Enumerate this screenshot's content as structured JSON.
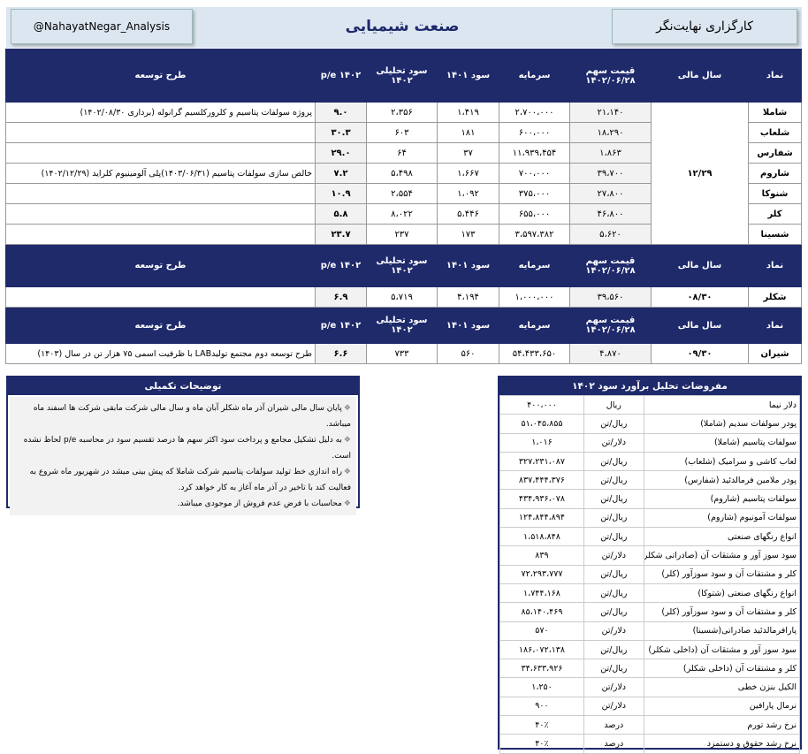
{
  "header": {
    "handle": "@NahayatNegar_Analysis",
    "title": "صنعت شیمیایی",
    "broker": "کارگزاری نهایت‌نگر"
  },
  "sections": [
    {
      "columns": [
        "نماد",
        "سال مالی",
        "قیمت سهم\n۱۴۰۲/۰۶/۲۸",
        "سرمایه",
        "سود ۱۴۰۱",
        "سود تحلیلی\n۱۴۰۲",
        "p/e ۱۴۰۲",
        "طرح توسعه"
      ],
      "fiscal_year": "۱۲/۲۹",
      "rows": [
        [
          "شاملا",
          "۲۱،۱۴۰",
          "۲،۷۰۰،۰۰۰",
          "۱،۴۱۹",
          "۲،۳۵۶",
          "۹.۰",
          "پروژه سولفات پتاسیم و کلرورکلسیم گرانوله (برداری ۱۴۰۲/۰۸/۳۰)"
        ],
        [
          "شلعاب",
          "۱۸،۲۹۰",
          "۶۰۰،۰۰۰",
          "۱۸۱",
          "۶۰۳",
          "۳۰.۳",
          ""
        ],
        [
          "شفارس",
          "۱،۸۶۳",
          "۱۱،۹۳۹،۴۵۴",
          "۳۷",
          "۶۴",
          "۲۹.۰",
          ""
        ],
        [
          "شاروم",
          "۳۹،۷۰۰",
          "۷۰۰،۰۰۰",
          "۱،۶۶۷",
          "۵،۴۹۸",
          "۷.۲",
          "خالص سازی سولفات پتاسیم (۱۴۰۳/۰۶/۳۱)پلی آلومینیوم کلراید (۱۴۰۲/۱۲/۲۹)"
        ],
        [
          "شنوکا",
          "۲۷،۸۰۰",
          "۳۷۵،۰۰۰",
          "۱،۰۹۲",
          "۲،۵۵۴",
          "۱۰.۹",
          ""
        ],
        [
          "کلر",
          "۴۶،۸۰۰",
          "۶۵۵،۰۰۰",
          "۵،۴۴۶",
          "۸،۰۲۲",
          "۵.۸",
          ""
        ],
        [
          "شسینا",
          "۵،۶۲۰",
          "۳،۵۹۷،۳۸۲",
          "۱۷۳",
          "۲۳۷",
          "۲۳.۷",
          ""
        ]
      ]
    },
    {
      "columns": [
        "نماد",
        "سال مالی",
        "قیمت سهم\n۱۴۰۲/۰۶/۲۸",
        "سرمایه",
        "سود ۱۴۰۱",
        "سود تحلیلی\n۱۴۰۲",
        "p/e ۱۴۰۲",
        "طرح توسعه"
      ],
      "fiscal_year": "۰۸/۳۰",
      "rows": [
        [
          "شکلر",
          "۳۹،۵۶۰",
          "۱،۰۰۰،۰۰۰",
          "۴،۱۹۴",
          "۵،۷۱۹",
          "۶.۹",
          ""
        ]
      ]
    },
    {
      "columns": [
        "نماد",
        "سال مالی",
        "قیمت سهم\n۱۴۰۲/۰۶/۲۸",
        "سرمایه",
        "سود ۱۴۰۱",
        "سود تحلیلی\n۱۴۰۲",
        "p/e ۱۴۰۲",
        "طرح توسعه"
      ],
      "fiscal_year": "۰۹/۳۰",
      "rows": [
        [
          "شیران",
          "۴،۸۷۰",
          "۵۴،۴۳۳،۶۵۰",
          "۵۶۰",
          "۷۳۳",
          "۶.۶",
          "طرح توسعه دوم مجتمع تولیدLAB با ظرفیت اسمی ۷۵ هزار تن در سال (۱۴۰۳)"
        ]
      ]
    }
  ],
  "notes": {
    "title": "توضیحات تکمیلی",
    "items": [
      "پایان سال مالی شیران آذر ماه شکلر آبان ماه و سال مالی شرکت مابقی شرکت ها اسفند ماه میباشد.",
      "به دلیل تشکیل مجامع و پرداخت سود اکثر سهم ها درصد تقسیم سود در محاسبه p/e لحاظ نشده است.",
      "راه اندازی خط تولید سولفات پتاسیم شرکت شاملا که پیش بینی میشد در شهریور ماه شروع به فعالیت کند با تاخیر در آذر ماه آغاز به کار خواهد کرد.",
      "محاسبات با فرض عدم فروش از موجودی میباشد."
    ]
  },
  "assumptions": {
    "title": "مفروضات تحلیل برآورد سود ۱۴۰۲",
    "rows": [
      [
        "دلار نیما",
        "ریال",
        "۴۰۰،۰۰۰"
      ],
      [
        "پودر سولفات سدیم (شاملا)",
        "ریال/تن",
        "۵۱،۰۴۵،۸۵۵"
      ],
      [
        "سولفات پتاسیم (شاملا)",
        "دلار/تن",
        "۱،۰۱۶"
      ],
      [
        "لعاب کاشی و سرامیک (شلعاب)",
        "ریال/تن",
        "۳۲۷،۲۳۱،۰۸۷"
      ],
      [
        "پودر ملامین فرمالدئید (شفارس)",
        "ریال/تن",
        "۸۳۷،۴۴۴،۳۷۶"
      ],
      [
        "سولفات پتاسیم (شاروم)",
        "ریال/تن",
        "۴۳۴،۹۳۶،۰۷۸"
      ],
      [
        "سولفات آمونیوم (شاروم)",
        "ریال/تن",
        "۱۲۴،۸۴۴،۸۹۴"
      ],
      [
        "انواع رنگهای صنعتی",
        "ریال/تن",
        "۱،۵۱۸،۸۴۸"
      ],
      [
        "سود سوز آور و مشتقات آن (صادراتی شکلر)",
        "دلار/تن",
        "۸۳۹"
      ],
      [
        "کلر و مشتقات آن و سود سوزآور (کلر)",
        "ریال/تن",
        "۷۲،۲۹۳،۷۷۷"
      ],
      [
        "انواع رنگهای صنعتی (شتوکا)",
        "ریال/تن",
        "۱،۷۴۴،۱۶۸"
      ],
      [
        "کلر و مشتقات آن و سود سوزآور (کلر)",
        "ریال/تن",
        "۸۵،۱۴۰،۴۶۹"
      ],
      [
        "پارافرمالدئید صادراتی(شسینا)",
        "دلار/تن",
        "۵۷۰"
      ],
      [
        "سود سوز آور و مشتقات آن (داخلی شکلر)",
        "ریال/تن",
        "۱۸۶،۰۷۲،۱۳۸"
      ],
      [
        "کلر و مشتقات آن (داخلی شکلر)",
        "ریال/تن",
        "۳۴،۶۳۳،۹۲۶"
      ],
      [
        "الکیل بنزن خطی",
        "دلار/تن",
        "۱،۲۵۰"
      ],
      [
        "نرمال پارافین",
        "دلار/تن",
        "۹۰۰"
      ],
      [
        "نرخ رشد تورم",
        "درصد",
        "۴۰٪"
      ],
      [
        "نرخ رشد حقوق و دستمزد",
        "درصد",
        "۴۰٪"
      ]
    ]
  }
}
